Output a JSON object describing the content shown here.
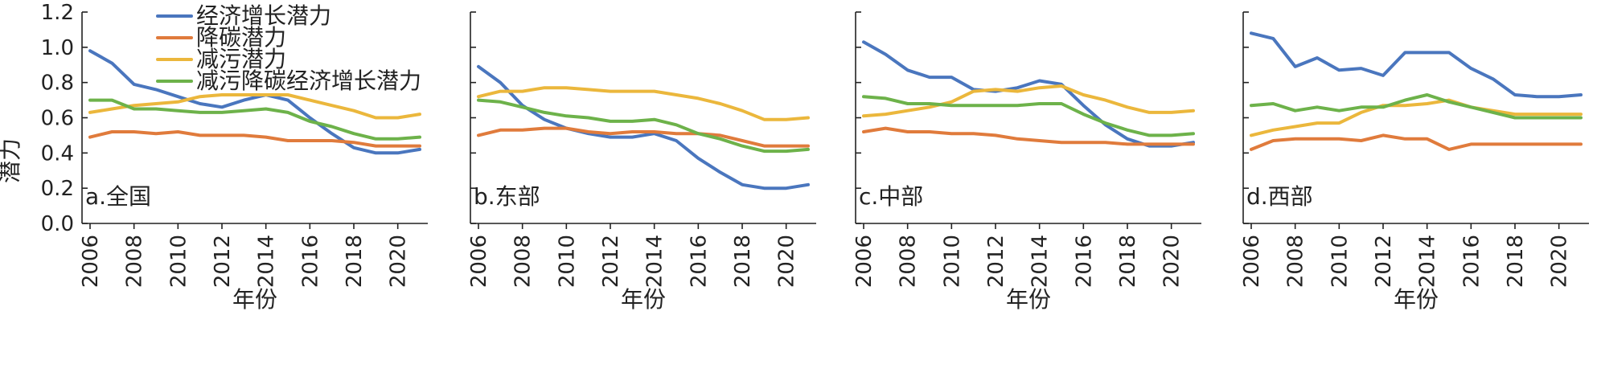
{
  "chart_data": {
    "type": "line",
    "ylabel": "潜力",
    "xlabel": "年份",
    "ylim": [
      0.0,
      1.2
    ],
    "yticks": [
      "0.0",
      "0.2",
      "0.4",
      "0.6",
      "0.8",
      "1.0",
      "1.2"
    ],
    "xticks": [
      "2006",
      "2008",
      "2010",
      "2012",
      "2014",
      "2016",
      "2018",
      "2020"
    ],
    "x": [
      2006,
      2007,
      2008,
      2009,
      2010,
      2011,
      2012,
      2013,
      2014,
      2015,
      2016,
      2017,
      2018,
      2019,
      2020,
      2021
    ],
    "legend": [
      "经济增长潜力",
      "降碳潜力",
      "减污潜力",
      "减污降碳经济增长潜力"
    ],
    "colors": [
      "#4a76be",
      "#e07b3c",
      "#ebb73c",
      "#6db24a"
    ],
    "panels": [
      {
        "label": "a.全国",
        "series": [
          {
            "name": "经济增长潜力",
            "values": [
              0.98,
              0.91,
              0.79,
              0.76,
              0.72,
              0.68,
              0.66,
              0.7,
              0.73,
              0.7,
              0.6,
              0.51,
              0.43,
              0.4,
              0.4,
              0.42
            ]
          },
          {
            "name": "降碳潜力",
            "values": [
              0.49,
              0.52,
              0.52,
              0.51,
              0.52,
              0.5,
              0.5,
              0.5,
              0.49,
              0.47,
              0.47,
              0.47,
              0.46,
              0.44,
              0.44,
              0.44
            ]
          },
          {
            "name": "减污潜力",
            "values": [
              0.63,
              0.65,
              0.67,
              0.68,
              0.69,
              0.72,
              0.73,
              0.73,
              0.73,
              0.73,
              0.7,
              0.67,
              0.64,
              0.6,
              0.6,
              0.62
            ]
          },
          {
            "name": "减污降碳经济增长潜力",
            "values": [
              0.7,
              0.7,
              0.65,
              0.65,
              0.64,
              0.63,
              0.63,
              0.64,
              0.65,
              0.63,
              0.58,
              0.55,
              0.51,
              0.48,
              0.48,
              0.49
            ]
          }
        ]
      },
      {
        "label": "b.东部",
        "series": [
          {
            "name": "经济增长潜力",
            "values": [
              0.89,
              0.8,
              0.67,
              0.59,
              0.54,
              0.51,
              0.49,
              0.49,
              0.51,
              0.47,
              0.37,
              0.29,
              0.22,
              0.2,
              0.2,
              0.22
            ]
          },
          {
            "name": "降碳潜力",
            "values": [
              0.5,
              0.53,
              0.53,
              0.54,
              0.54,
              0.52,
              0.51,
              0.52,
              0.52,
              0.51,
              0.51,
              0.5,
              0.47,
              0.44,
              0.44,
              0.44
            ]
          },
          {
            "name": "减污潜力",
            "values": [
              0.72,
              0.75,
              0.75,
              0.77,
              0.77,
              0.76,
              0.75,
              0.75,
              0.75,
              0.73,
              0.71,
              0.68,
              0.64,
              0.59,
              0.59,
              0.6
            ]
          },
          {
            "name": "减污降碳经济增长潜力",
            "values": [
              0.7,
              0.69,
              0.66,
              0.63,
              0.61,
              0.6,
              0.58,
              0.58,
              0.59,
              0.56,
              0.51,
              0.48,
              0.44,
              0.41,
              0.41,
              0.42
            ]
          }
        ]
      },
      {
        "label": "c.中部",
        "series": [
          {
            "name": "经济增长潜力",
            "values": [
              1.03,
              0.96,
              0.87,
              0.83,
              0.83,
              0.76,
              0.75,
              0.77,
              0.81,
              0.79,
              0.67,
              0.56,
              0.48,
              0.44,
              0.44,
              0.46
            ]
          },
          {
            "name": "降碳潜力",
            "values": [
              0.52,
              0.54,
              0.52,
              0.52,
              0.51,
              0.51,
              0.5,
              0.48,
              0.47,
              0.46,
              0.46,
              0.46,
              0.45,
              0.45,
              0.45,
              0.45
            ]
          },
          {
            "name": "减污潜力",
            "values": [
              0.61,
              0.62,
              0.64,
              0.66,
              0.69,
              0.75,
              0.76,
              0.75,
              0.77,
              0.78,
              0.73,
              0.7,
              0.66,
              0.63,
              0.63,
              0.64
            ]
          },
          {
            "name": "减污降碳经济增长潜力",
            "values": [
              0.72,
              0.71,
              0.68,
              0.68,
              0.67,
              0.67,
              0.67,
              0.67,
              0.68,
              0.68,
              0.62,
              0.57,
              0.53,
              0.5,
              0.5,
              0.51
            ]
          }
        ]
      },
      {
        "label": "d.西部",
        "series": [
          {
            "name": "经济增长潜力",
            "values": [
              1.08,
              1.05,
              0.89,
              0.94,
              0.87,
              0.88,
              0.84,
              0.97,
              0.97,
              0.97,
              0.88,
              0.82,
              0.73,
              0.72,
              0.72,
              0.73
            ]
          },
          {
            "name": "降碳潜力",
            "values": [
              0.42,
              0.47,
              0.48,
              0.48,
              0.48,
              0.47,
              0.5,
              0.48,
              0.48,
              0.42,
              0.45,
              0.45,
              0.45,
              0.45,
              0.45,
              0.45
            ]
          },
          {
            "name": "减污潜力",
            "values": [
              0.5,
              0.53,
              0.55,
              0.57,
              0.57,
              0.63,
              0.67,
              0.67,
              0.68,
              0.7,
              0.66,
              0.64,
              0.62,
              0.62,
              0.62,
              0.62
            ]
          },
          {
            "name": "减污降碳经济增长潜力",
            "values": [
              0.67,
              0.68,
              0.64,
              0.66,
              0.64,
              0.66,
              0.66,
              0.7,
              0.73,
              0.69,
              0.66,
              0.63,
              0.6,
              0.6,
              0.6,
              0.6
            ]
          }
        ]
      }
    ]
  }
}
